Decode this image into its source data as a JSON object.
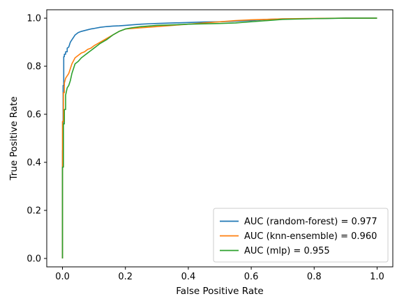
{
  "chart_data": {
    "type": "line",
    "title": "",
    "xlabel": "False Positive Rate",
    "ylabel": "True Positive Rate",
    "xlim": [
      -0.05,
      1.05
    ],
    "ylim": [
      -0.035,
      1.035
    ],
    "xticks": [
      0.0,
      0.2,
      0.4,
      0.6,
      0.8,
      1.0
    ],
    "yticks": [
      0.0,
      0.2,
      0.4,
      0.6,
      0.8,
      1.0
    ],
    "xtick_labels": [
      "0.0",
      "0.2",
      "0.4",
      "0.6",
      "0.8",
      "1.0"
    ],
    "ytick_labels": [
      "0.0",
      "0.2",
      "0.4",
      "0.6",
      "0.8",
      "1.0"
    ],
    "grid": false,
    "legend_position": "lower-right",
    "series": [
      {
        "name": "AUC (random-forest) = 0.977",
        "color": "#1f77b4",
        "x": [
          0.0,
          0.0,
          0.002,
          0.002,
          0.004,
          0.004,
          0.006,
          0.006,
          0.01,
          0.01,
          0.015,
          0.015,
          0.02,
          0.025,
          0.03,
          0.035,
          0.04,
          0.05,
          0.06,
          0.075,
          0.09,
          0.1,
          0.12,
          0.14,
          0.16,
          0.18,
          0.2,
          0.22,
          0.25,
          0.28,
          0.3,
          0.35,
          0.4,
          0.45,
          0.5,
          0.6,
          0.65,
          0.7,
          0.8,
          0.9,
          1.0
        ],
        "y": [
          0.0,
          0.45,
          0.45,
          0.72,
          0.72,
          0.84,
          0.84,
          0.85,
          0.85,
          0.86,
          0.86,
          0.875,
          0.88,
          0.9,
          0.91,
          0.92,
          0.93,
          0.94,
          0.945,
          0.95,
          0.955,
          0.957,
          0.962,
          0.965,
          0.967,
          0.968,
          0.97,
          0.972,
          0.975,
          0.977,
          0.978,
          0.98,
          0.982,
          0.984,
          0.985,
          0.99,
          0.995,
          0.997,
          0.998,
          1.0,
          1.0
        ]
      },
      {
        "name": "AUC (knn-ensemble) = 0.960",
        "color": "#ff7f0e",
        "x": [
          0.0,
          0.0,
          0.003,
          0.003,
          0.006,
          0.006,
          0.01,
          0.015,
          0.02,
          0.025,
          0.03,
          0.04,
          0.05,
          0.06,
          0.07,
          0.08,
          0.09,
          0.1,
          0.12,
          0.14,
          0.16,
          0.18,
          0.2,
          0.25,
          0.3,
          0.35,
          0.4,
          0.45,
          0.5,
          0.55,
          0.6,
          0.65,
          0.7,
          0.8,
          0.9,
          1.0
        ],
        "y": [
          0.0,
          0.57,
          0.57,
          0.69,
          0.69,
          0.73,
          0.75,
          0.76,
          0.77,
          0.79,
          0.81,
          0.835,
          0.845,
          0.855,
          0.86,
          0.87,
          0.875,
          0.885,
          0.9,
          0.915,
          0.93,
          0.945,
          0.955,
          0.96,
          0.965,
          0.97,
          0.975,
          0.98,
          0.985,
          0.99,
          0.993,
          0.995,
          0.997,
          0.999,
          1.0,
          1.0
        ]
      },
      {
        "name": "AUC (mlp) = 0.955",
        "color": "#2ca02c",
        "x": [
          0.0,
          0.0,
          0.003,
          0.003,
          0.006,
          0.006,
          0.01,
          0.01,
          0.015,
          0.02,
          0.025,
          0.03,
          0.035,
          0.04,
          0.05,
          0.06,
          0.07,
          0.08,
          0.09,
          0.1,
          0.11,
          0.12,
          0.14,
          0.16,
          0.18,
          0.2,
          0.22,
          0.25,
          0.3,
          0.35,
          0.4,
          0.5,
          0.55,
          0.6,
          0.65,
          0.7,
          0.8,
          0.9,
          1.0
        ],
        "y": [
          0.0,
          0.38,
          0.38,
          0.56,
          0.56,
          0.62,
          0.62,
          0.68,
          0.71,
          0.72,
          0.74,
          0.77,
          0.79,
          0.81,
          0.82,
          0.835,
          0.845,
          0.855,
          0.865,
          0.875,
          0.885,
          0.895,
          0.91,
          0.93,
          0.945,
          0.955,
          0.96,
          0.965,
          0.97,
          0.972,
          0.975,
          0.978,
          0.98,
          0.985,
          0.99,
          0.995,
          0.998,
          1.0,
          1.0
        ]
      }
    ]
  }
}
